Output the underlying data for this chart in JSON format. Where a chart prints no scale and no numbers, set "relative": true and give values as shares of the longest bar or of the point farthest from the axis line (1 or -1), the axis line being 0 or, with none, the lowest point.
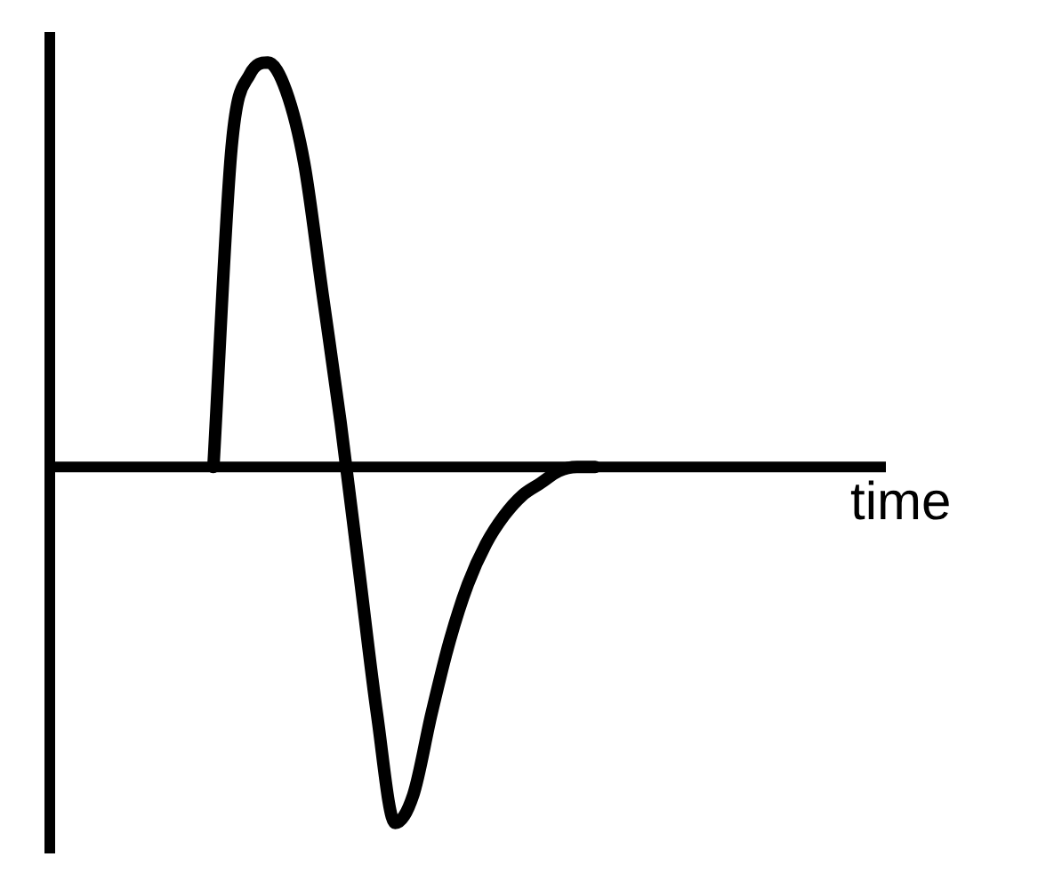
{
  "chart_data": {
    "type": "line",
    "relative": true,
    "xlabel": "time",
    "color": "#000000",
    "marker": "none",
    "legend": false,
    "categories": [
      null,
      null,
      null,
      null,
      null,
      null,
      null,
      null,
      null,
      null,
      null,
      null,
      null,
      null,
      null,
      null,
      null,
      null,
      null,
      null,
      null,
      null,
      null,
      null,
      null,
      null,
      null,
      null,
      null,
      null,
      null,
      null,
      null,
      null,
      null,
      null,
      null,
      null,
      null,
      null,
      null,
      null,
      null,
      null,
      null,
      null,
      null
    ],
    "values": [
      null,
      null,
      null,
      null,
      null,
      null,
      null,
      null,
      null,
      0,
      0.79,
      0.97,
      1,
      0.93,
      0.75,
      0.43,
      0.11,
      -0.25,
      -0.61,
      -0.88,
      -0.81,
      -0.61,
      -0.43,
      -0.29,
      -0.19,
      -0.12,
      -0.07,
      -0.04,
      -0.01,
      0,
      0,
      null,
      null,
      null,
      null,
      null,
      null,
      null,
      null,
      null,
      null,
      null,
      null,
      null,
      null,
      null,
      null
    ]
  }
}
